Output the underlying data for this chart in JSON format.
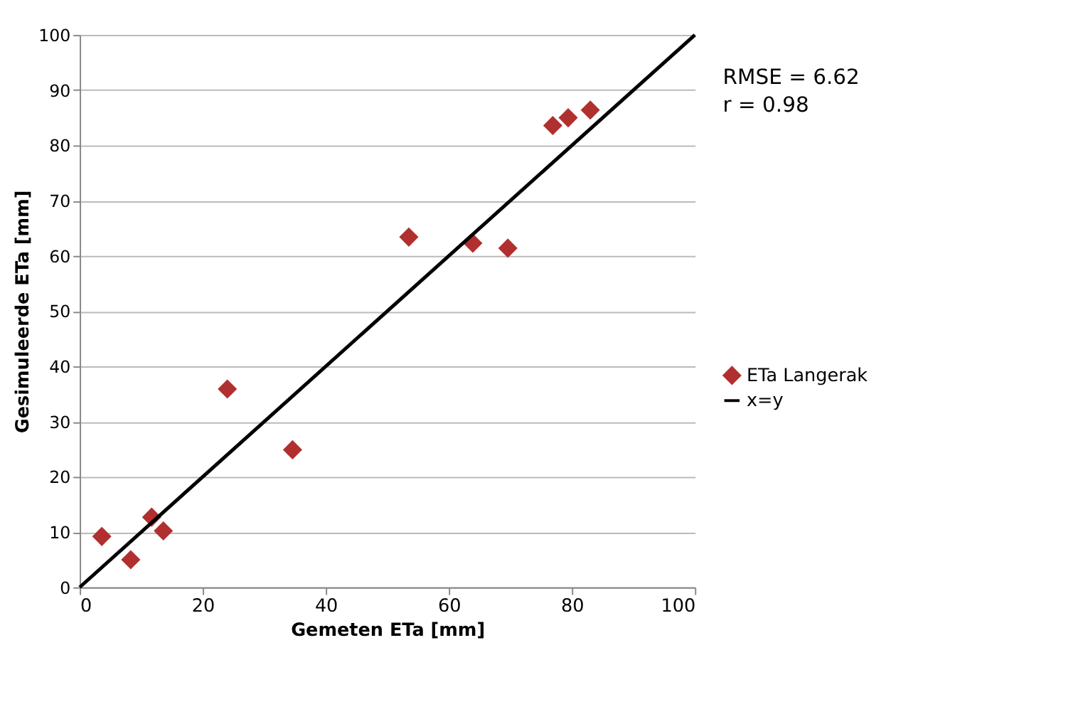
{
  "chart_data": {
    "type": "scatter",
    "xlabel": "Gemeten ETa [mm]",
    "ylabel": "Gesimuleerde ETa  [mm]",
    "x": [
      3.6,
      8.3,
      11.7,
      13.6,
      24.0,
      34.6,
      53.5,
      63.9,
      69.6,
      76.9,
      79.4,
      83.0
    ],
    "series": [
      {
        "name": "ETa Langerak",
        "color": "#b03030",
        "marker": "diamond",
        "values": [
          9.2,
          5.0,
          12.7,
          10.2,
          35.9,
          24.9,
          63.4,
          62.3,
          61.4,
          83.6,
          85.0,
          86.4
        ]
      },
      {
        "name": "x=y",
        "type": "line",
        "color": "#000000",
        "x": [
          0,
          100
        ],
        "values": [
          0,
          100
        ],
        "line_style": "solid",
        "marker": "none"
      }
    ],
    "xlim": [
      0,
      100
    ],
    "xticks": [
      0,
      20,
      40,
      60,
      80,
      100
    ],
    "ylim": [
      0,
      100
    ],
    "yticks": [
      0,
      10,
      20,
      30,
      40,
      50,
      60,
      70,
      80,
      90,
      100
    ],
    "grid": "y",
    "legend": "right",
    "annotations": [
      "RMSE = 6.62",
      "r = 0.98"
    ]
  }
}
